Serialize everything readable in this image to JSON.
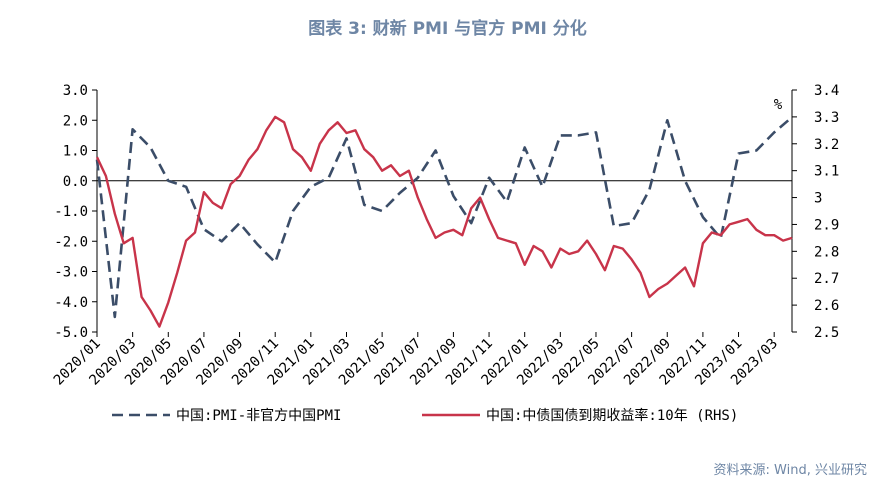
{
  "title": "图表 3:  财新 PMI 与官方 PMI 分化",
  "source": "资料来源:  Wind, 兴业研究",
  "colors": {
    "pmi_diff": "#3b4d68",
    "bond_yield": "#c8344a",
    "title": "#6e86a5",
    "axis": "#000000"
  },
  "chart_data": {
    "type": "line",
    "y_left": {
      "range": [
        -5.0,
        3.0
      ],
      "ticks": [
        "3.0",
        "2.0",
        "1.0",
        "0.0",
        "-1.0",
        "-2.0",
        "-3.0",
        "-4.0",
        "-5.0"
      ]
    },
    "y_right": {
      "range": [
        2.5,
        3.4
      ],
      "ticks": [
        "3.4",
        "3.3",
        "3.2",
        "3.1",
        "3",
        "2.9",
        "2.8",
        "2.7",
        "2.6",
        "2.5"
      ],
      "unit_label": "%"
    },
    "x_range": [
      "2020/01",
      "2023/04"
    ],
    "x_ticks": [
      "2020/01",
      "2020/03",
      "2020/05",
      "2020/07",
      "2020/09",
      "2020/11",
      "2021/01",
      "2021/03",
      "2021/05",
      "2021/07",
      "2021/09",
      "2021/11",
      "2022/01",
      "2022/03",
      "2022/05",
      "2022/07",
      "2022/09",
      "2022/11",
      "2023/01",
      "2023/03"
    ],
    "series": [
      {
        "name": "中国:PMI-非官方中国PMI",
        "axis": "left",
        "style": "dashed",
        "x": [
          "2020/01",
          "2020/02",
          "2020/03",
          "2020/04",
          "2020/05",
          "2020/06",
          "2020/07",
          "2020/08",
          "2020/09",
          "2020/10",
          "2020/11",
          "2020/12",
          "2021/01",
          "2021/02",
          "2021/03",
          "2021/04",
          "2021/05",
          "2021/06",
          "2021/07",
          "2021/08",
          "2021/09",
          "2021/10",
          "2021/11",
          "2021/12",
          "2022/01",
          "2022/02",
          "2022/03",
          "2022/04",
          "2022/05",
          "2022/06",
          "2022/07",
          "2022/08",
          "2022/09",
          "2022/10",
          "2022/11",
          "2022/12",
          "2023/01",
          "2023/02",
          "2023/03",
          "2023/04"
        ],
        "values": [
          0.7,
          -4.5,
          1.7,
          1.1,
          0.0,
          -0.2,
          -1.6,
          -2.0,
          -1.4,
          -2.1,
          -2.7,
          -1.0,
          -0.2,
          0.1,
          1.4,
          -0.8,
          -1.0,
          -0.4,
          0.1,
          1.0,
          -0.5,
          -1.4,
          0.1,
          -0.7,
          1.1,
          -0.2,
          1.5,
          1.5,
          1.6,
          -1.5,
          -1.4,
          -0.3,
          2.0,
          0.0,
          -1.2,
          -1.9,
          0.9,
          1.0,
          1.6,
          2.1
        ]
      },
      {
        "name": "中国:中债国债到期收益率:10年 (RHS)",
        "axis": "right",
        "style": "solid",
        "x": [
          "2020/01",
          "2020/01",
          "2020/02",
          "2020/02",
          "2020/03",
          "2020/03",
          "2020/04",
          "2020/04",
          "2020/05",
          "2020/05",
          "2020/06",
          "2020/06",
          "2020/07",
          "2020/07",
          "2020/08",
          "2020/08",
          "2020/09",
          "2020/09",
          "2020/10",
          "2020/10",
          "2020/11",
          "2020/11",
          "2020/12",
          "2020/12",
          "2021/01",
          "2021/01",
          "2021/02",
          "2021/02",
          "2021/03",
          "2021/03",
          "2021/04",
          "2021/04",
          "2021/05",
          "2021/05",
          "2021/06",
          "2021/06",
          "2021/07",
          "2021/07",
          "2021/08",
          "2021/08",
          "2021/09",
          "2021/09",
          "2021/10",
          "2021/10",
          "2021/11",
          "2021/11",
          "2021/12",
          "2021/12",
          "2022/01",
          "2022/01",
          "2022/02",
          "2022/02",
          "2022/03",
          "2022/03",
          "2022/04",
          "2022/04",
          "2022/05",
          "2022/05",
          "2022/06",
          "2022/06",
          "2022/07",
          "2022/07",
          "2022/08",
          "2022/08",
          "2022/09",
          "2022/09",
          "2022/10",
          "2022/10",
          "2022/11",
          "2022/11",
          "2022/12",
          "2022/12",
          "2023/01",
          "2023/01",
          "2023/02",
          "2023/02",
          "2023/03",
          "2023/03",
          "2023/04"
        ],
        "values": [
          3.15,
          3.08,
          2.94,
          2.83,
          2.85,
          2.63,
          2.58,
          2.52,
          2.61,
          2.72,
          2.84,
          2.87,
          3.02,
          2.98,
          2.96,
          3.05,
          3.08,
          3.14,
          3.18,
          3.25,
          3.3,
          3.28,
          3.18,
          3.15,
          3.1,
          3.2,
          3.25,
          3.28,
          3.24,
          3.25,
          3.18,
          3.15,
          3.1,
          3.12,
          3.08,
          3.1,
          3.0,
          2.92,
          2.85,
          2.87,
          2.88,
          2.86,
          2.96,
          3.0,
          2.92,
          2.85,
          2.84,
          2.83,
          2.75,
          2.82,
          2.8,
          2.74,
          2.81,
          2.79,
          2.8,
          2.84,
          2.79,
          2.73,
          2.82,
          2.81,
          2.77,
          2.72,
          2.63,
          2.66,
          2.68,
          2.71,
          2.74,
          2.67,
          2.83,
          2.87,
          2.86,
          2.9,
          2.91,
          2.92,
          2.88,
          2.86,
          2.86,
          2.84,
          2.85
        ]
      }
    ],
    "legend": {
      "placement": "bottom",
      "entries": [
        "中国:PMI-非官方中国PMI",
        "中国:中债国债到期收益率:10年 (RHS)"
      ]
    },
    "grid": false
  }
}
